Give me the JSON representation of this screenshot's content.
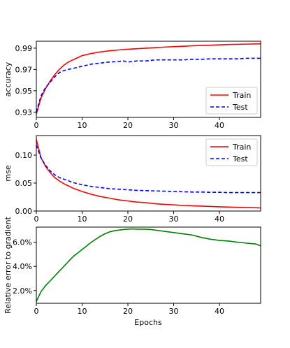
{
  "figure": {
    "xlabel": "Epochs",
    "colors": {
      "train": "#ff0000",
      "test": "#0000ff",
      "grad": "#008000",
      "axes": "#000000"
    }
  },
  "chart_data": [
    {
      "id": "accuracy",
      "type": "line",
      "title": "",
      "xlabel": "",
      "ylabel": "accuracy",
      "xlim": [
        0,
        49
      ],
      "ylim": [
        0.925,
        0.9965
      ],
      "xticks": [
        0,
        10,
        20,
        30,
        40
      ],
      "yticks": [
        0.93,
        0.95,
        0.97,
        0.99
      ],
      "ytick_labels": [
        "0.93",
        "0.95",
        "0.97",
        "0.99"
      ],
      "legend_position": "lower-right",
      "grid": false,
      "series": [
        {
          "name": "Train",
          "style": "solid",
          "color": "#ff0000",
          "x": [
            0,
            1,
            2,
            3,
            4,
            5,
            6,
            7,
            8,
            9,
            10,
            12,
            14,
            16,
            18,
            20,
            22,
            24,
            26,
            28,
            30,
            32,
            34,
            36,
            38,
            40,
            42,
            44,
            46,
            48,
            49
          ],
          "y": [
            0.928,
            0.943,
            0.952,
            0.959,
            0.965,
            0.97,
            0.974,
            0.977,
            0.979,
            0.981,
            0.983,
            0.985,
            0.9865,
            0.9875,
            0.9883,
            0.989,
            0.9895,
            0.99,
            0.9905,
            0.991,
            0.9914,
            0.9918,
            0.9922,
            0.9925,
            0.9928,
            0.9931,
            0.9934,
            0.9936,
            0.9938,
            0.994,
            0.9941
          ]
        },
        {
          "name": "Test",
          "style": "dashed",
          "color": "#0000ff",
          "x": [
            0,
            1,
            2,
            3,
            4,
            5,
            6,
            7,
            8,
            9,
            10,
            12,
            14,
            16,
            18,
            19,
            20,
            22,
            24,
            26,
            28,
            30,
            32,
            34,
            36,
            38,
            40,
            42,
            44,
            46,
            48,
            49
          ],
          "y": [
            0.93,
            0.945,
            0.953,
            0.958,
            0.963,
            0.967,
            0.969,
            0.97,
            0.971,
            0.972,
            0.973,
            0.975,
            0.976,
            0.977,
            0.9775,
            0.978,
            0.977,
            0.978,
            0.978,
            0.979,
            0.979,
            0.979,
            0.979,
            0.9795,
            0.9795,
            0.98,
            0.98,
            0.98,
            0.98,
            0.9805,
            0.9805,
            0.9805
          ]
        }
      ]
    },
    {
      "id": "mse",
      "type": "line",
      "title": "",
      "xlabel": "",
      "ylabel": "mse",
      "xlim": [
        0,
        49
      ],
      "ylim": [
        0.0,
        0.135
      ],
      "xticks": [
        0,
        10,
        20,
        30,
        40
      ],
      "yticks": [
        0.0,
        0.05,
        0.1
      ],
      "ytick_labels": [
        "0.00",
        "0.05",
        "0.10"
      ],
      "legend_position": "upper-right",
      "grid": false,
      "series": [
        {
          "name": "Train",
          "style": "solid",
          "color": "#ff0000",
          "x": [
            0,
            1,
            2,
            3,
            4,
            5,
            6,
            7,
            8,
            9,
            10,
            12,
            14,
            16,
            18,
            20,
            22,
            24,
            26,
            28,
            30,
            32,
            34,
            36,
            38,
            40,
            42,
            44,
            46,
            48,
            49
          ],
          "y": [
            0.128,
            0.096,
            0.08,
            0.069,
            0.06,
            0.054,
            0.049,
            0.045,
            0.041,
            0.038,
            0.035,
            0.03,
            0.026,
            0.023,
            0.02,
            0.018,
            0.016,
            0.015,
            0.013,
            0.012,
            0.011,
            0.01,
            0.0095,
            0.0088,
            0.0082,
            0.0076,
            0.0071,
            0.0066,
            0.0062,
            0.0058,
            0.0056
          ]
        },
        {
          "name": "Test",
          "style": "dashed",
          "color": "#0000ff",
          "x": [
            0,
            1,
            2,
            3,
            4,
            5,
            6,
            7,
            8,
            9,
            10,
            12,
            14,
            16,
            18,
            20,
            22,
            24,
            26,
            28,
            30,
            32,
            34,
            36,
            38,
            40,
            42,
            44,
            46,
            48,
            49
          ],
          "y": [
            0.118,
            0.095,
            0.082,
            0.072,
            0.065,
            0.06,
            0.057,
            0.054,
            0.051,
            0.049,
            0.047,
            0.044,
            0.042,
            0.04,
            0.039,
            0.038,
            0.037,
            0.0365,
            0.036,
            0.0355,
            0.035,
            0.0345,
            0.034,
            0.034,
            0.0335,
            0.0335,
            0.033,
            0.033,
            0.033,
            0.033,
            0.033
          ]
        }
      ]
    },
    {
      "id": "relative-error",
      "type": "line",
      "title": "",
      "xlabel": "Epochs",
      "ylabel": "Relative error to gradient",
      "xlim": [
        0,
        49
      ],
      "ylim": [
        0.0095,
        0.0725
      ],
      "xticks": [
        0,
        10,
        20,
        30,
        40
      ],
      "yticks": [
        0.02,
        0.04,
        0.06
      ],
      "ytick_labels": [
        "2.0%",
        "4.0%",
        "6.0%"
      ],
      "legend_position": "none",
      "grid": false,
      "series": [
        {
          "name": "",
          "style": "solid",
          "color": "#008000",
          "x": [
            0,
            1,
            2,
            3,
            4,
            5,
            6,
            7,
            8,
            9,
            10,
            11,
            12,
            13,
            14,
            15,
            16,
            17,
            18,
            19,
            20,
            21,
            22,
            23,
            24,
            25,
            26,
            27,
            28,
            29,
            30,
            32,
            34,
            36,
            38,
            40,
            42,
            44,
            46,
            48,
            49
          ],
          "y": [
            0.011,
            0.019,
            0.024,
            0.028,
            0.032,
            0.036,
            0.04,
            0.044,
            0.048,
            0.051,
            0.054,
            0.057,
            0.06,
            0.0625,
            0.065,
            0.067,
            0.0685,
            0.0695,
            0.07,
            0.0705,
            0.0708,
            0.071,
            0.0708,
            0.0708,
            0.0707,
            0.0705,
            0.07,
            0.0695,
            0.069,
            0.0685,
            0.068,
            0.067,
            0.066,
            0.064,
            0.0625,
            0.0615,
            0.061,
            0.06,
            0.0592,
            0.0585,
            0.057
          ]
        }
      ]
    }
  ]
}
